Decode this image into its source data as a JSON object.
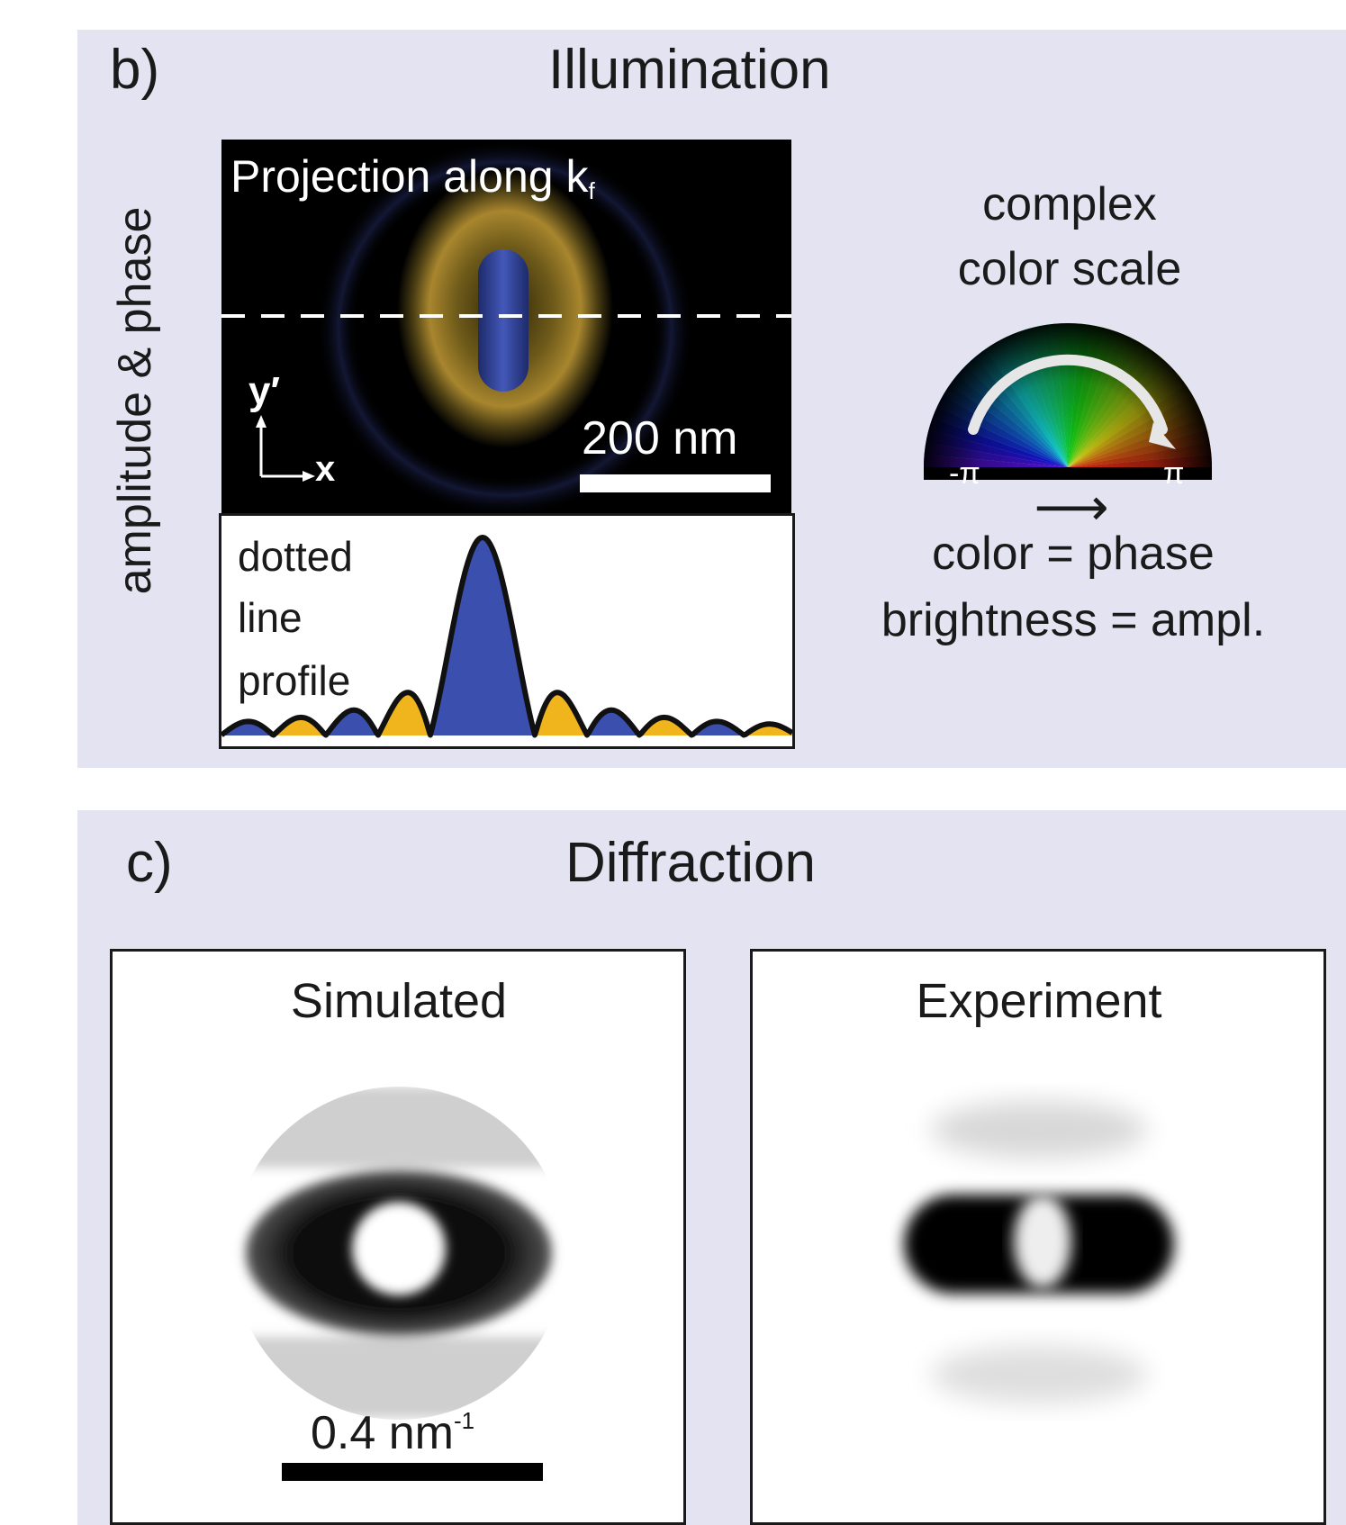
{
  "panel_b": {
    "letter": "b)",
    "title": "Illumination",
    "side_label": "amplitude & phase",
    "projection": {
      "title": "Projection along k",
      "title_subscript": "f",
      "axis_y": "y′",
      "axis_x": "x",
      "scalebar_label": "200 nm"
    },
    "profile": {
      "label_lines": [
        "dotted",
        "line",
        "profile"
      ]
    },
    "color_scale": {
      "title_lines": [
        "complex",
        "color scale"
      ],
      "min_label": "-π",
      "max_label": "π",
      "arrow": "⟶",
      "legend_lines": [
        "color = phase",
        "brightness = ampl."
      ]
    }
  },
  "panel_c": {
    "letter": "c)",
    "title": "Diffraction",
    "simulated": {
      "title": "Simulated",
      "scalebar_label": "0.4 nm",
      "scalebar_exponent": "-1"
    },
    "experiment": {
      "title": "Experiment"
    }
  },
  "colors": {
    "panel_background": "#e3e3f1",
    "phase_blue": "#3b4fae",
    "phase_gold": "#f0b41c",
    "ink": "#1a1a1a"
  }
}
